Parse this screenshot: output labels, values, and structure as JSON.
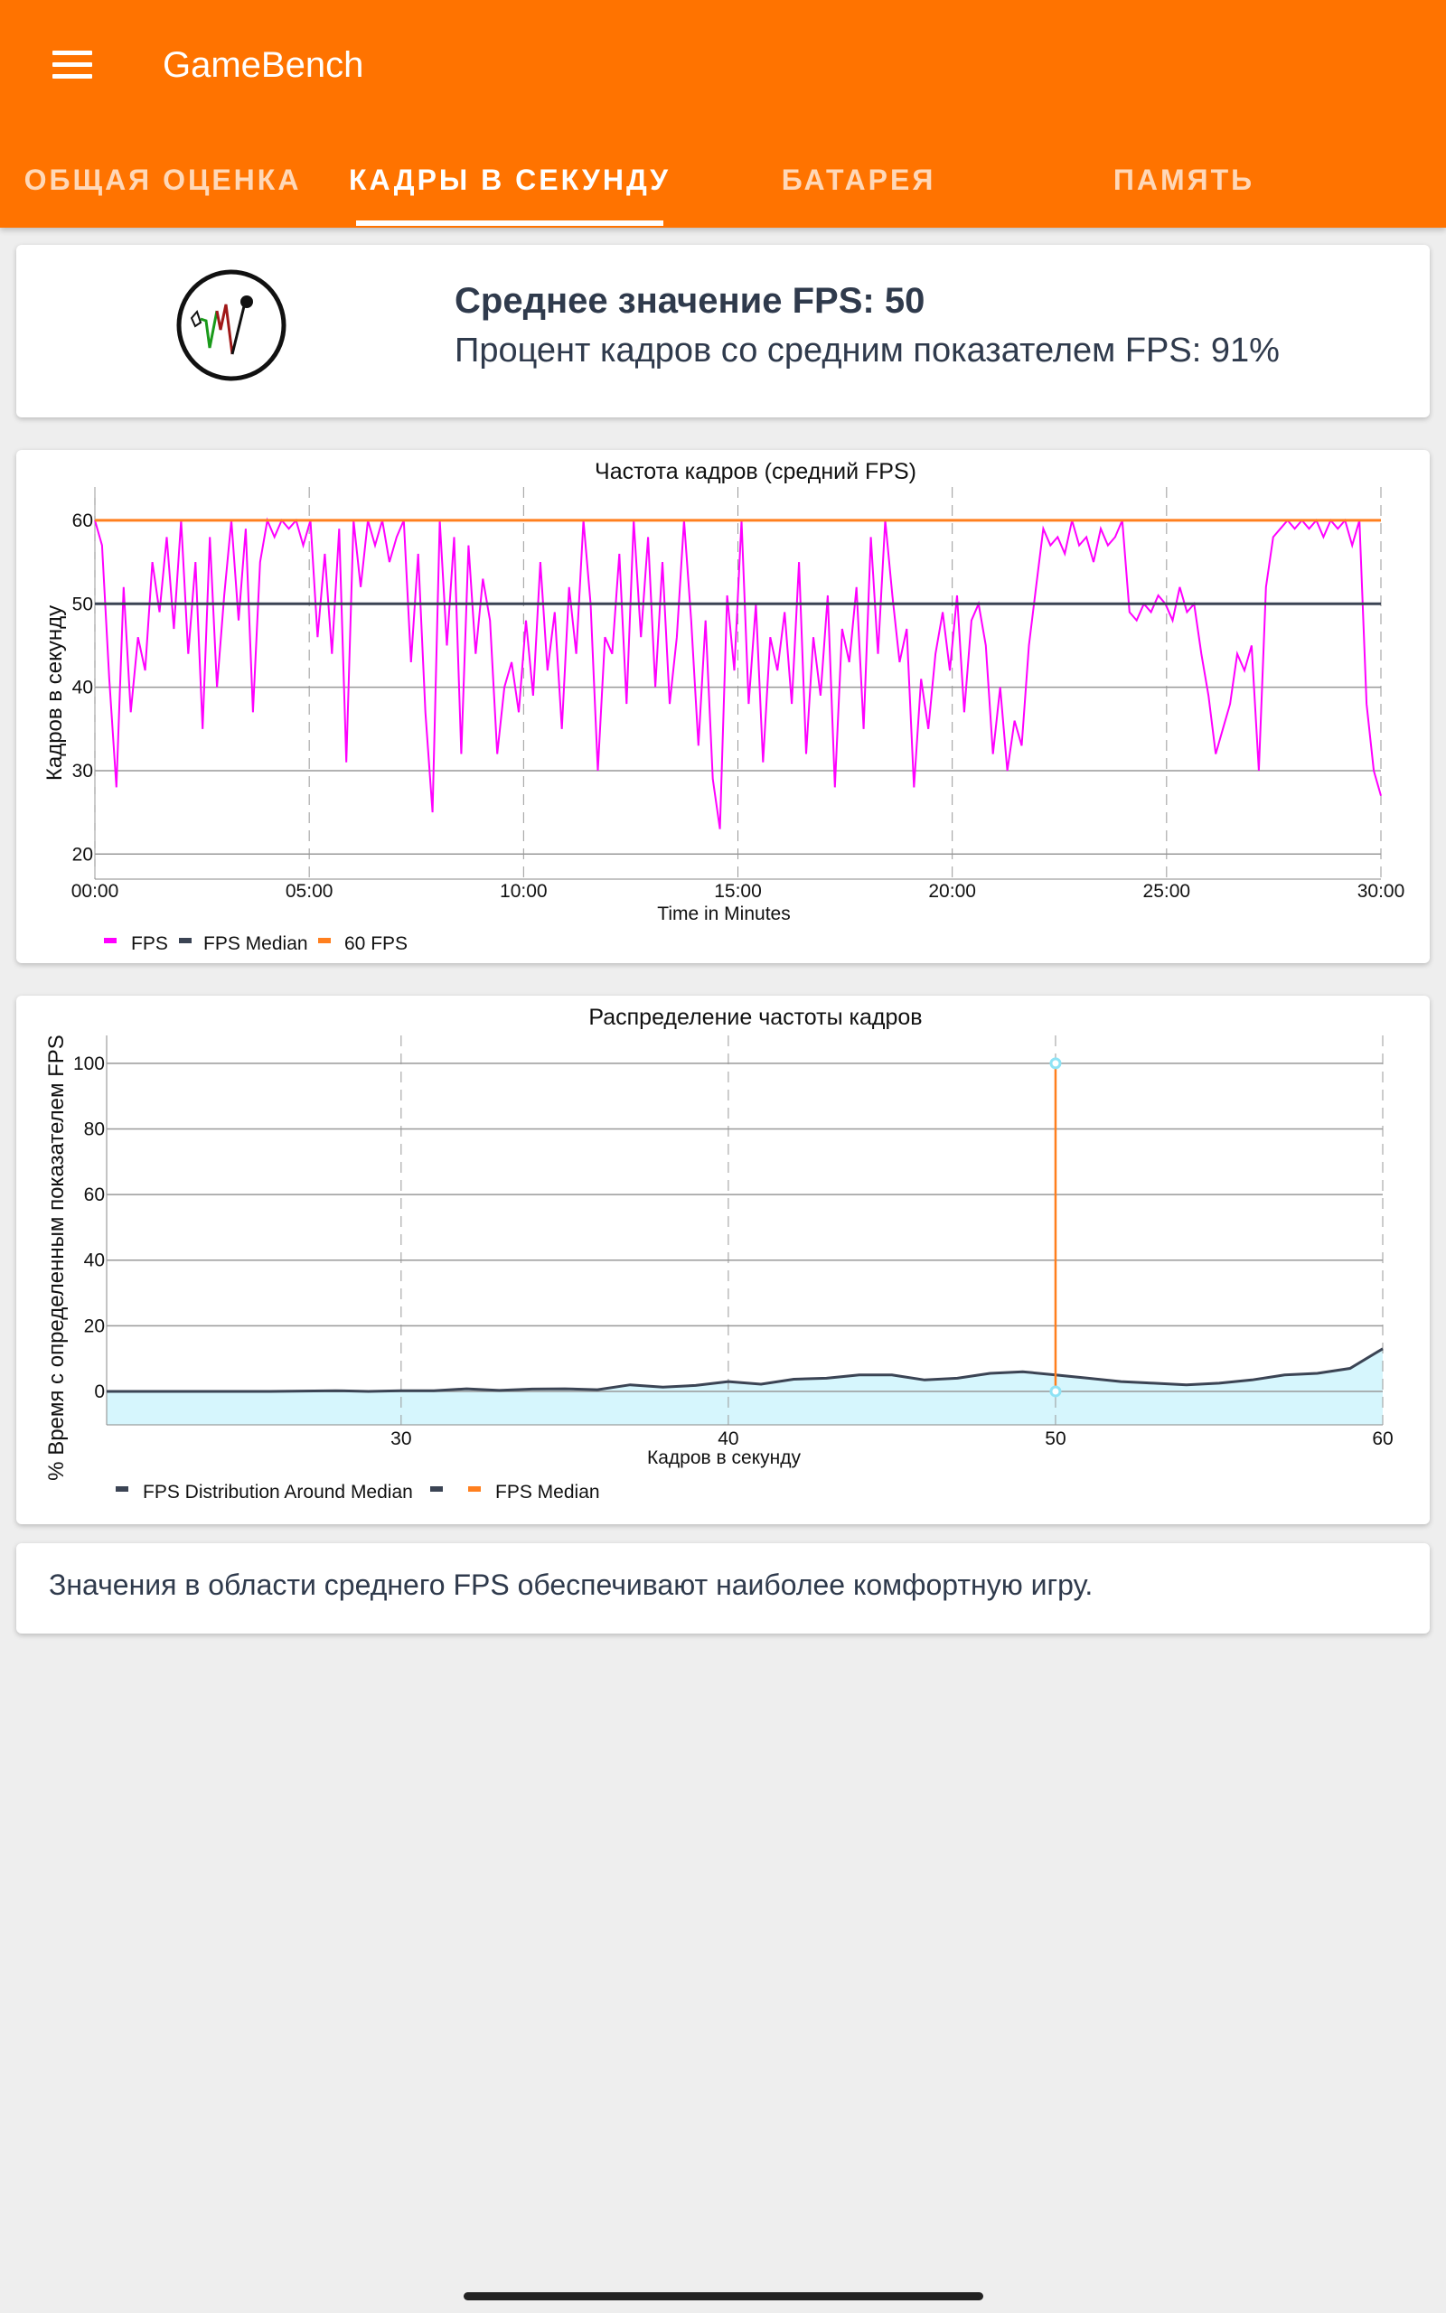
{
  "app": {
    "title": "GameBench",
    "menu_icon": "hamburger-menu-icon"
  },
  "tabs": [
    {
      "label": "ОБЩАЯ ОЦЕНКА",
      "active": false
    },
    {
      "label": "КАДРЫ В СЕКУНДУ",
      "active": true
    },
    {
      "label": "БАТАРЕЯ",
      "active": false
    },
    {
      "label": "ПАМЯТЬ",
      "active": false
    }
  ],
  "summary": {
    "icon": "fps-chart-logo-icon",
    "average_fps": "Среднее значение FPS: 50",
    "percent_frames": "Процент кадров со средним показателем FPS: 91%"
  },
  "note": "Значения в области среднего FPS обеспечивают наиболее комфортную игру.",
  "colors": {
    "brand": "#ff7300",
    "fps": "#ff00ff",
    "median": "#3b4454",
    "sixty": "#ff7f1e",
    "area": "#d6f6fd"
  },
  "chart_data": [
    {
      "type": "line",
      "title": "Частота кадров (средний FPS)",
      "xlabel": "Time in Minutes",
      "ylabel": "Кадров в секунду",
      "x_range_minutes": [
        0,
        30
      ],
      "xticks": [
        "00:00",
        "05:00",
        "10:00",
        "15:00",
        "20:00",
        "25:00",
        "30:00"
      ],
      "yticks": [
        20,
        30,
        40,
        50,
        60
      ],
      "ylim": [
        17,
        64
      ],
      "grid": true,
      "legend": {
        "position": "bottom-left",
        "items": [
          "FPS",
          "FPS Median",
          "60 FPS"
        ]
      },
      "median": 50,
      "reference": 60,
      "series": [
        {
          "name": "FPS",
          "values": [
            60,
            57,
            41,
            28,
            52,
            37,
            46,
            42,
            55,
            49,
            58,
            47,
            60,
            44,
            55,
            35,
            58,
            40,
            51,
            60,
            48,
            59,
            37,
            55,
            60,
            58,
            60,
            59,
            60,
            57,
            60,
            46,
            56,
            44,
            59,
            31,
            60,
            52,
            60,
            57,
            60,
            55,
            58,
            60,
            43,
            56,
            37,
            25,
            60,
            45,
            58,
            32,
            57,
            44,
            53,
            48,
            32,
            40,
            43,
            37,
            48,
            39,
            55,
            42,
            49,
            35,
            52,
            44,
            60,
            50,
            30,
            46,
            44,
            56,
            38,
            60,
            46,
            58,
            40,
            55,
            38,
            46,
            60,
            48,
            33,
            48,
            29,
            23,
            51,
            42,
            60,
            38,
            50,
            31,
            46,
            42,
            49,
            38,
            55,
            32,
            46,
            39,
            51,
            28,
            47,
            43,
            52,
            35,
            58,
            44,
            60,
            51,
            43,
            47,
            28,
            41,
            35,
            44,
            49,
            42,
            51,
            37,
            48,
            50,
            45,
            32,
            40,
            30,
            36,
            33,
            45,
            52,
            59,
            57,
            58,
            56,
            60,
            57,
            58,
            55,
            59,
            57,
            58,
            60,
            49,
            48,
            50,
            49,
            51,
            50,
            48,
            52,
            49,
            50,
            44,
            39,
            32,
            35,
            38,
            44,
            42,
            45,
            30,
            52,
            58,
            59,
            60,
            59,
            60,
            59,
            60,
            58,
            60,
            59,
            60,
            57,
            60,
            38,
            30,
            27
          ]
        }
      ]
    },
    {
      "type": "area",
      "title": "Распределение частоты кадров",
      "xlabel": "Кадров в секунду",
      "ylabel": "% Время с определенным показателем FPS",
      "xlim": [
        21,
        60
      ],
      "ylim": [
        -10.2,
        108.5
      ],
      "xticks": [
        30,
        40,
        50,
        60
      ],
      "yticks": [
        0,
        20,
        40,
        60,
        80,
        100
      ],
      "grid": true,
      "legend": {
        "position": "bottom-left",
        "items": [
          "FPS Distribution Around Median",
          "",
          "FPS Median"
        ]
      },
      "median": 50,
      "x": [
        21,
        22,
        23,
        24,
        25,
        26,
        27,
        28,
        29,
        30,
        31,
        32,
        33,
        34,
        35,
        36,
        37,
        38,
        39,
        40,
        41,
        42,
        43,
        44,
        45,
        46,
        47,
        48,
        49,
        50,
        51,
        52,
        53,
        54,
        55,
        56,
        57,
        58,
        59,
        60
      ],
      "series": [
        {
          "name": "FPS Distribution Around Median",
          "values": [
            0,
            0,
            0,
            0,
            0,
            0,
            0.1,
            0.2,
            0,
            0.2,
            0.2,
            0.8,
            0.3,
            0.7,
            0.8,
            0.5,
            2,
            1.3,
            1.8,
            3,
            2.2,
            3.7,
            4,
            5,
            5,
            3.5,
            4,
            5.5,
            6,
            5,
            4,
            3,
            2.5,
            2,
            2.5,
            3.5,
            5,
            5.5,
            7,
            13
          ]
        }
      ],
      "median_line": [
        0,
        100
      ]
    }
  ]
}
